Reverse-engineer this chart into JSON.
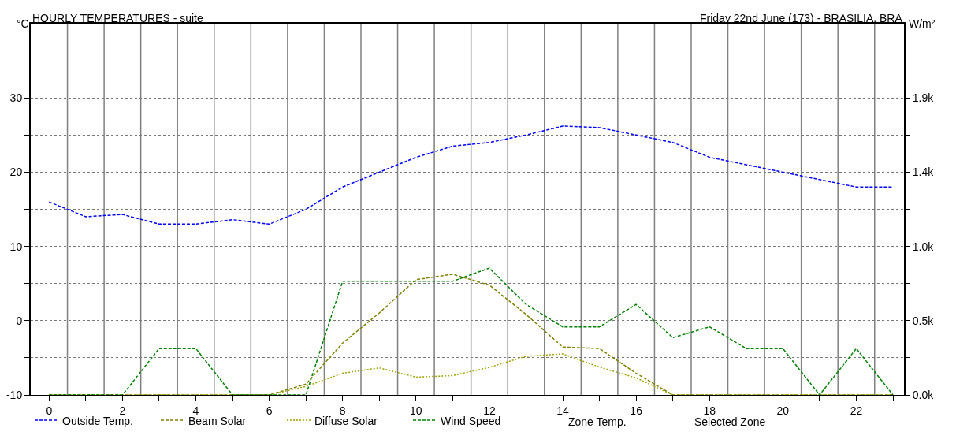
{
  "chart_data": {
    "type": "line",
    "title": "HOURLY TEMPERATURES - suite",
    "subtitle": "Friday 22nd June (173) - BRASILIA, BRA",
    "ylabel": "°C",
    "y2label": "W/m²",
    "x": [
      0,
      1,
      2,
      3,
      4,
      5,
      6,
      7,
      8,
      9,
      10,
      11,
      12,
      13,
      14,
      15,
      16,
      17,
      18,
      19,
      20,
      21,
      22,
      23
    ],
    "xlim": [
      -0.5,
      23.3
    ],
    "xticks": [
      0,
      {
        "value": 1,
        "label": null
      },
      2,
      {
        "value": 3,
        "label": null
      },
      4,
      {
        "value": 5,
        "label": null
      },
      6,
      {
        "value": 7,
        "label": null
      },
      8,
      {
        "value": 9,
        "label": null
      },
      10,
      {
        "value": 11,
        "label": null
      },
      12,
      {
        "value": 13,
        "label": null
      },
      14,
      {
        "value": 15,
        "label": null
      },
      16,
      {
        "value": 17,
        "label": null
      },
      18,
      {
        "value": 19,
        "label": null
      },
      20,
      {
        "value": 21,
        "label": null
      },
      22,
      {
        "value": 23,
        "label": null
      }
    ],
    "ylim": [
      -10,
      40
    ],
    "yticks": [
      -10,
      {
        "value": -5,
        "label": null
      },
      0,
      {
        "value": 5,
        "label": null
      },
      10,
      {
        "value": 15,
        "label": null
      },
      20,
      {
        "value": 25,
        "label": null
      },
      30,
      {
        "value": 35,
        "label": null
      }
    ],
    "y2lim": [
      0,
      2400
    ],
    "y2ticks": [
      {
        "value": 0,
        "label": "0.0k"
      },
      {
        "value": 240,
        "label": null
      },
      {
        "value": 480,
        "label": "0.5k"
      },
      {
        "value": 720,
        "label": null
      },
      {
        "value": 960,
        "label": "1.0k"
      },
      {
        "value": 1200,
        "label": null
      },
      {
        "value": 1440,
        "label": "1.4k"
      },
      {
        "value": 1680,
        "label": null
      },
      {
        "value": 1920,
        "label": "1.9k"
      },
      {
        "value": 2160,
        "label": null
      }
    ],
    "series": [
      {
        "name": "Outside Temp.",
        "color": "#0000ff",
        "line_style": "dashed",
        "values": [
          16,
          14,
          14.3,
          13,
          13,
          13.6,
          13,
          15,
          18,
          20,
          22,
          23.5,
          24,
          25,
          26.2,
          26,
          25,
          24,
          22,
          21,
          20,
          19,
          18,
          18
        ]
      },
      {
        "name": "Beam Solar",
        "color": "#808000",
        "line_style": "dashed",
        "axis": "y2",
        "values": [
          0,
          0,
          0,
          0,
          0,
          0,
          0,
          70,
          335,
          530,
          745,
          780,
          710,
          520,
          310,
          300,
          140,
          0,
          0,
          0,
          0,
          0,
          0,
          0
        ]
      },
      {
        "name": "Diffuse Solar",
        "color": "#a0a000",
        "line_style": "dotted",
        "axis": "y2",
        "values": [
          0,
          0,
          0,
          0,
          0,
          0,
          0,
          55,
          140,
          175,
          115,
          125,
          178,
          250,
          265,
          180,
          110,
          0,
          0,
          0,
          0,
          0,
          0,
          0
        ]
      },
      {
        "name": "Wind Speed",
        "color": "#008000",
        "line_style": "dashed",
        "axis": "y2",
        "values": [
          0,
          0,
          0,
          300,
          300,
          0,
          0,
          0,
          735,
          735,
          735,
          735,
          820,
          585,
          440,
          440,
          585,
          370,
          440,
          300,
          300,
          0,
          300,
          0
        ]
      }
    ],
    "annotations": [
      "Zone Temp.",
      "Selected Zone"
    ],
    "grid": true,
    "legend": "bottom"
  }
}
